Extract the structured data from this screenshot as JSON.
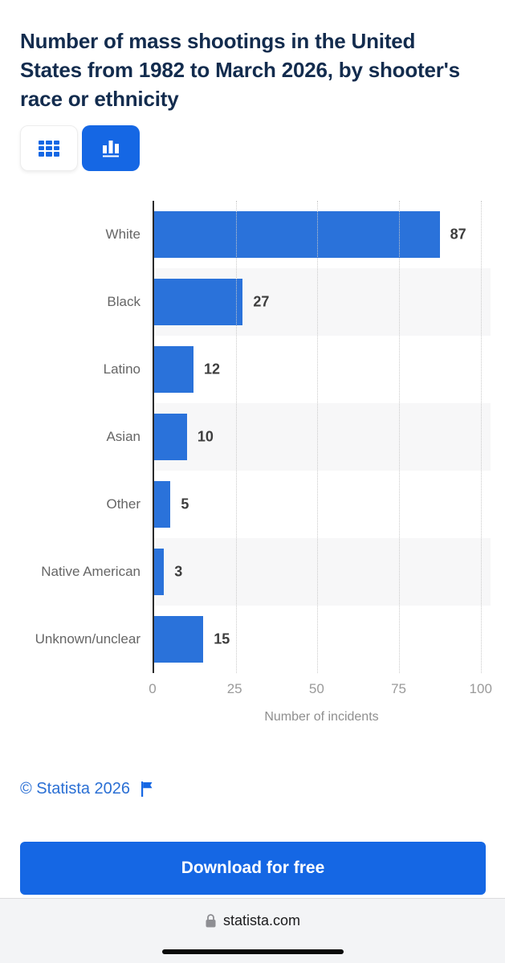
{
  "header": {
    "title_lines": [
      "Number of mass shootings in the United",
      "States from 1982 to March 2026, by shooter's",
      "race or ethnicity"
    ]
  },
  "view_toggle": {
    "active_view": "chart",
    "table_icon": "grid-icon",
    "chart_icon": "bar-chart-icon"
  },
  "chart_data": {
    "type": "bar",
    "orientation": "horizontal",
    "title": "Number of mass shootings in the United States from 1982 to March 2026, by shooter's race or ethnicity",
    "categories": [
      "White",
      "Black",
      "Latino",
      "Asian",
      "Other",
      "Native American",
      "Unknown/unclear"
    ],
    "values": [
      87,
      27,
      12,
      10,
      5,
      3,
      15
    ],
    "xlabel": "Number of incidents",
    "ylabel": "",
    "xticks": [
      0,
      25,
      50,
      75,
      100
    ],
    "xlim": [
      0,
      103
    ],
    "grid": "vertical-dotted",
    "legend": "none",
    "bar_color": "#2a72da",
    "stripe_color": "#f7f7f8"
  },
  "footer": {
    "copyright_text": "© Statista 2026",
    "flag_icon": "flag-icon"
  },
  "cta": {
    "label": "Download for free"
  },
  "browser_bar": {
    "domain": "statista.com",
    "lock_icon": "lock-icon"
  },
  "colors": {
    "title": "#132c4e",
    "accent_blue": "#1567e4",
    "bar_blue": "#2a72da",
    "link_blue": "#2a6fd4",
    "axis": "#2b2b2b",
    "gridline": "#c9c9c9",
    "category_label": "#666666",
    "value_label": "#3d3d3d",
    "tick_label": "#9a9a9a",
    "bottom_bar_bg": "#f3f4f6"
  }
}
